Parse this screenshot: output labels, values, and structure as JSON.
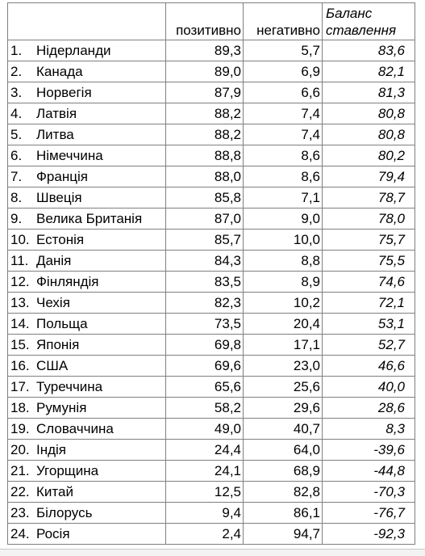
{
  "header": {
    "col_positive": "позитивно",
    "col_negative": "негативно",
    "col_balance_line1": "Баланс",
    "col_balance_line2": "ставлення"
  },
  "rows": [
    {
      "rank": "1.",
      "country": "Нідерланди",
      "positive": "89,3",
      "negative": "5,7",
      "balance": "83,6"
    },
    {
      "rank": "2.",
      "country": "Канада",
      "positive": "89,0",
      "negative": "6,9",
      "balance": "82,1"
    },
    {
      "rank": "3.",
      "country": "Норвегія",
      "positive": "87,9",
      "negative": "6,6",
      "balance": "81,3"
    },
    {
      "rank": "4.",
      "country": "Латвія",
      "positive": "88,2",
      "negative": "7,4",
      "balance": "80,8"
    },
    {
      "rank": "5.",
      "country": "Литва",
      "positive": "88,2",
      "negative": "7,4",
      "balance": "80,8"
    },
    {
      "rank": "6.",
      "country": "Німеччина",
      "positive": "88,8",
      "negative": "8,6",
      "balance": "80,2"
    },
    {
      "rank": "7.",
      "country": "Франція",
      "positive": "88,0",
      "negative": "8,6",
      "balance": "79,4"
    },
    {
      "rank": "8.",
      "country": "Швеція",
      "positive": "85,8",
      "negative": "7,1",
      "balance": "78,7"
    },
    {
      "rank": "9.",
      "country": "Велика Британія",
      "positive": "87,0",
      "negative": "9,0",
      "balance": "78,0"
    },
    {
      "rank": "10.",
      "country": "Естонія",
      "positive": "85,7",
      "negative": "10,0",
      "balance": "75,7"
    },
    {
      "rank": "11.",
      "country": "Данія",
      "positive": "84,3",
      "negative": "8,8",
      "balance": "75,5"
    },
    {
      "rank": "12.",
      "country": "Фінляндія",
      "positive": "83,5",
      "negative": "8,9",
      "balance": "74,6"
    },
    {
      "rank": "13.",
      "country": "Чехія",
      "positive": "82,3",
      "negative": "10,2",
      "balance": "72,1"
    },
    {
      "rank": "14.",
      "country": "Польща",
      "positive": "73,5",
      "negative": "20,4",
      "balance": "53,1"
    },
    {
      "rank": "15.",
      "country": "Японія",
      "positive": "69,8",
      "negative": "17,1",
      "balance": "52,7"
    },
    {
      "rank": "16.",
      "country": "США",
      "positive": "69,6",
      "negative": "23,0",
      "balance": "46,6"
    },
    {
      "rank": "17.",
      "country": "Туреччина",
      "positive": "65,6",
      "negative": "25,6",
      "balance": "40,0"
    },
    {
      "rank": "18.",
      "country": "Румунія",
      "positive": "58,2",
      "negative": "29,6",
      "balance": "28,6"
    },
    {
      "rank": "19.",
      "country": "Словаччина",
      "positive": "49,0",
      "negative": "40,7",
      "balance": "8,3"
    },
    {
      "rank": "20.",
      "country": "Індія",
      "positive": "24,4",
      "negative": "64,0",
      "balance": "-39,6"
    },
    {
      "rank": "21.",
      "country": "Угорщина",
      "positive": "24,1",
      "negative": "68,9",
      "balance": "-44,8"
    },
    {
      "rank": "22.",
      "country": "Китай",
      "positive": "12,5",
      "negative": "82,8",
      "balance": "-70,3"
    },
    {
      "rank": "23.",
      "country": "Білорусь",
      "positive": "9,4",
      "negative": "86,1",
      "balance": "-76,7"
    },
    {
      "rank": "24.",
      "country": "Росія",
      "positive": "2,4",
      "negative": "94,7",
      "balance": "-92,3"
    }
  ]
}
